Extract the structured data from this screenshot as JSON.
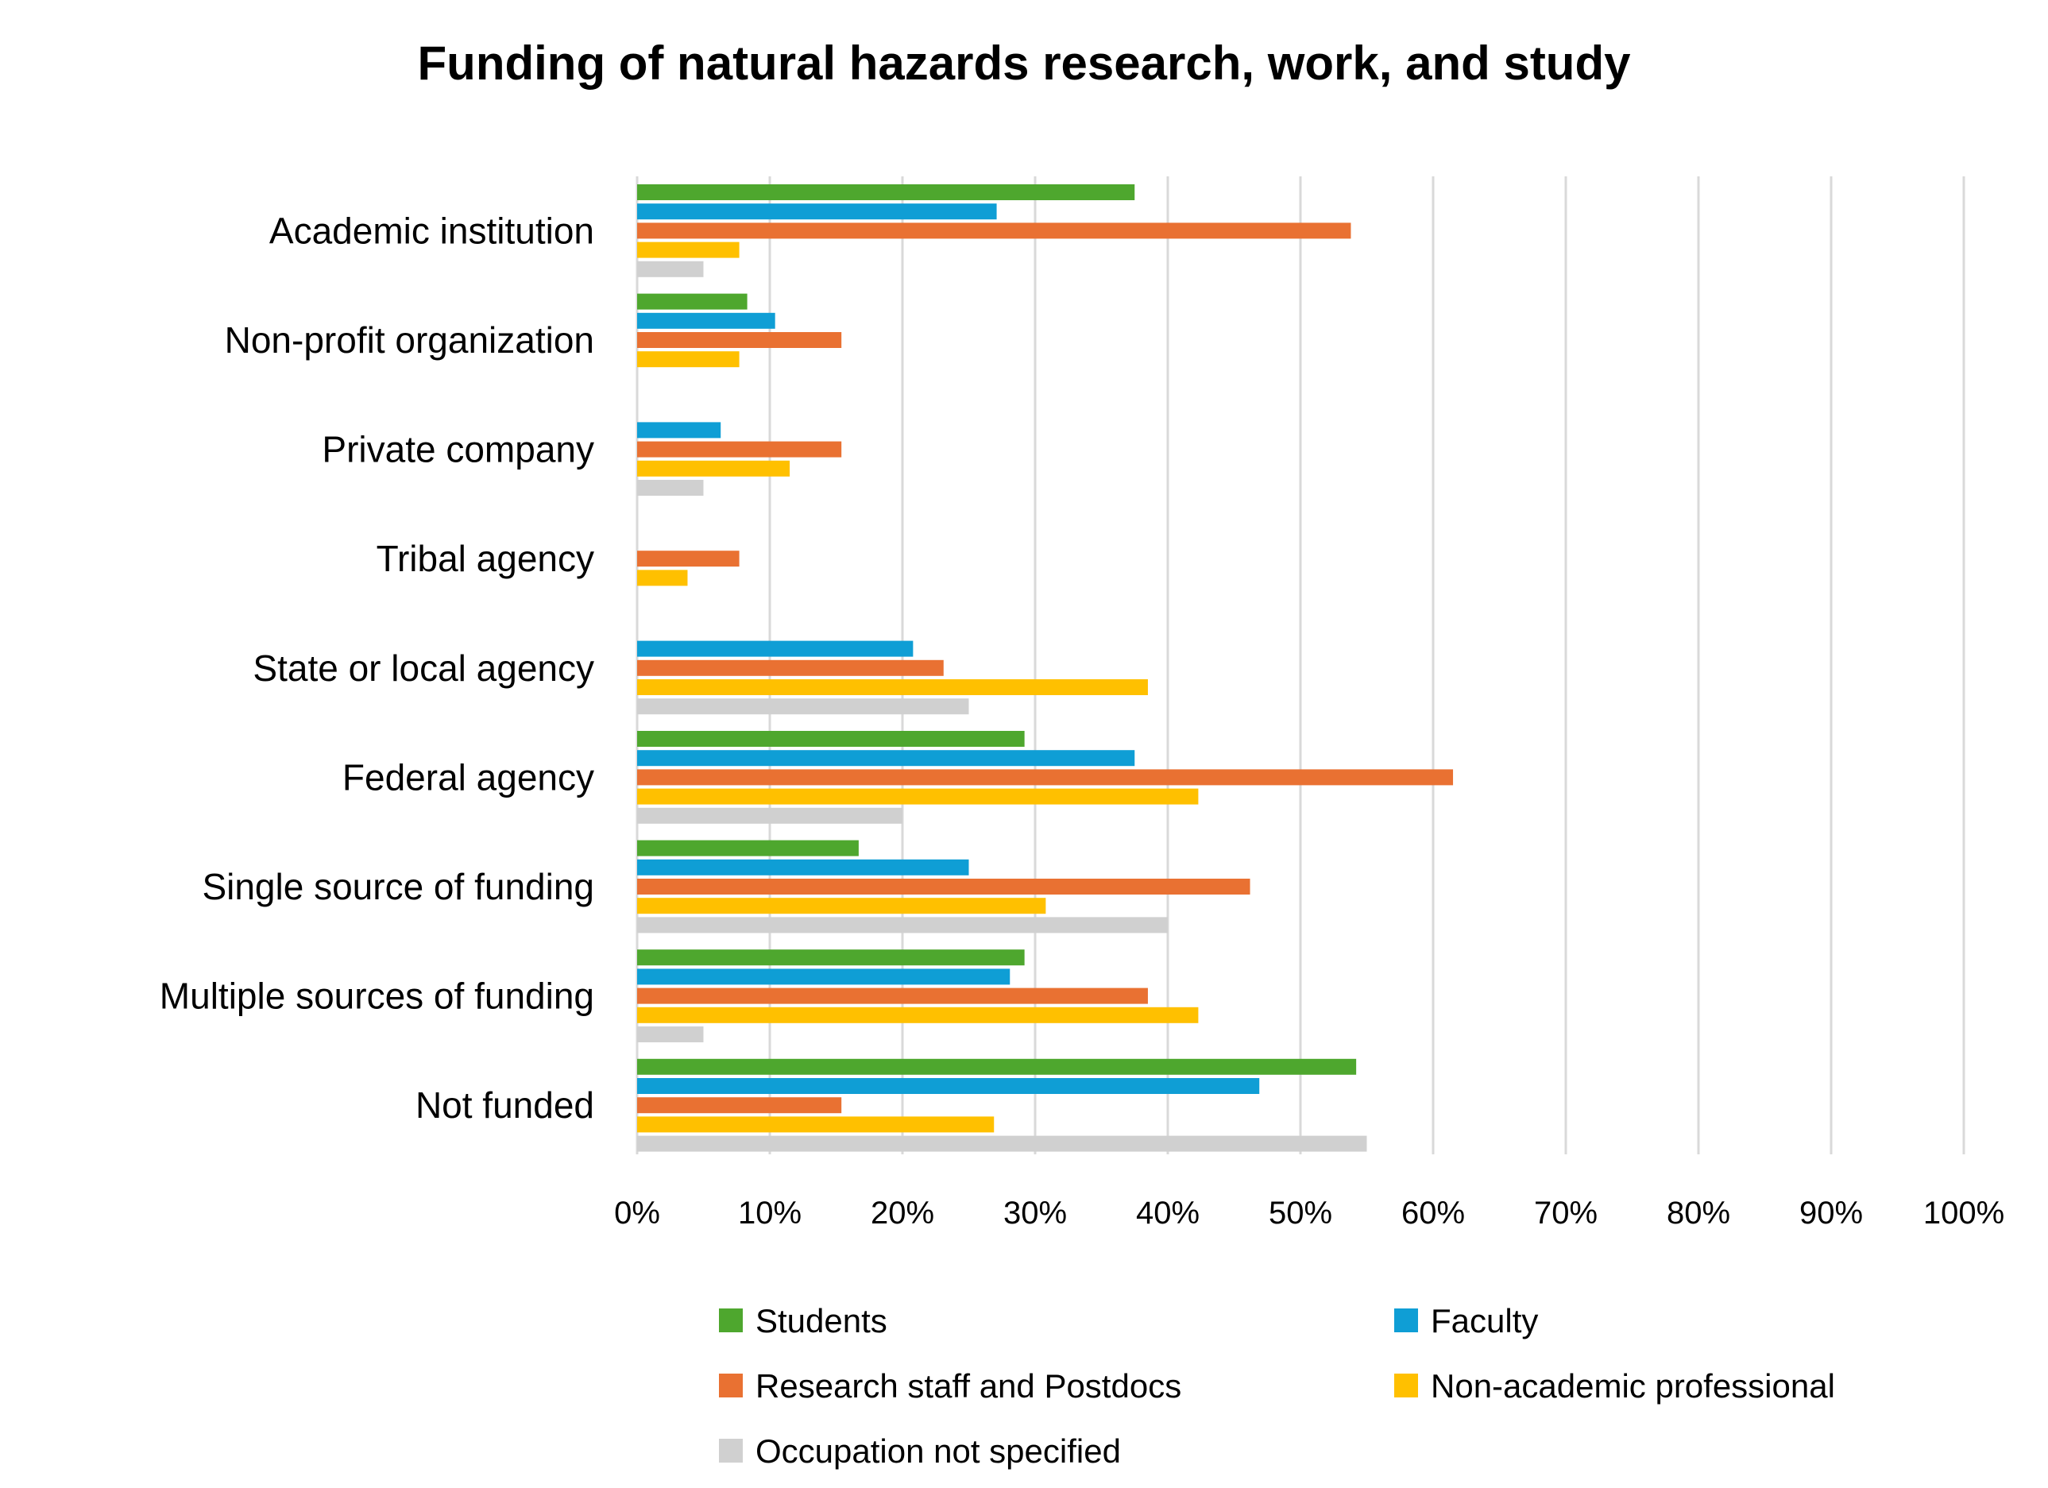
{
  "chart_data": {
    "type": "bar",
    "orientation": "horizontal",
    "title": "Funding of natural hazards research, work, and study",
    "xlabel": "",
    "ylabel": "",
    "xlim": [
      0,
      100
    ],
    "x_ticks": [
      "0%",
      "10%",
      "20%",
      "30%",
      "40%",
      "50%",
      "60%",
      "70%",
      "80%",
      "90%",
      "100%"
    ],
    "grid": "vertical",
    "legend_position": "bottom",
    "categories": [
      "Academic institution",
      "Non-profit organization",
      "Private company",
      "Tribal agency",
      "State or local agency",
      "Federal agency",
      "Single source of funding",
      "Multiple sources of funding",
      "Not funded"
    ],
    "series": [
      {
        "name": "Students",
        "color": "#4ea72e",
        "values": [
          37.5,
          8.3,
          0,
          0,
          0,
          29.2,
          16.7,
          29.2,
          54.2
        ]
      },
      {
        "name": "Faculty",
        "color": "#0f9ed5",
        "values": [
          27.1,
          10.4,
          6.3,
          0,
          20.8,
          37.5,
          25.0,
          28.1,
          46.9
        ]
      },
      {
        "name": "Research staff and Postdocs",
        "color": "#e97132",
        "values": [
          53.8,
          15.4,
          15.4,
          7.7,
          23.1,
          61.5,
          46.2,
          38.5,
          15.4
        ]
      },
      {
        "name": "Non-academic professional",
        "color": "#ffc000",
        "values": [
          7.7,
          7.7,
          11.5,
          3.8,
          38.5,
          42.3,
          30.8,
          42.3,
          26.9
        ]
      },
      {
        "name": "Occupation not specified",
        "color": "#d0d0d0",
        "values": [
          5,
          0,
          5,
          0,
          25,
          20,
          40,
          5,
          55
        ]
      }
    ]
  }
}
